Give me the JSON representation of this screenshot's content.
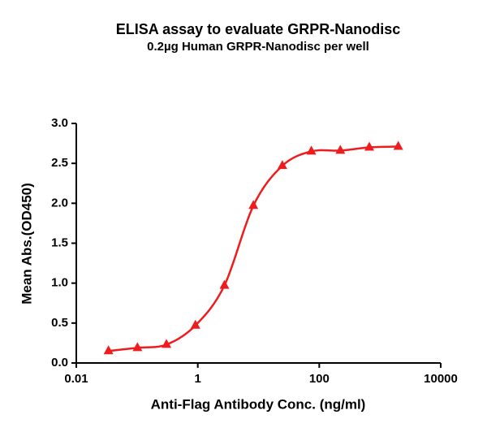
{
  "chart_data": {
    "type": "scatter",
    "title": "ELISA assay to evaluate GRPR-Nanodisc",
    "subtitle": "0.2µg Human GRPR-Nanodisc per well",
    "x_label": "Anti-Flag Antibody Conc. (ng/ml)",
    "y_label": "Mean Abs.(OD450)",
    "x_log": true,
    "xlim": [
      0.01,
      10000
    ],
    "xticks": [
      0.01,
      1,
      100,
      10000
    ],
    "ylim": [
      0,
      3
    ],
    "yticks": [
      {
        "value": 0,
        "label": "0.0"
      },
      0.5,
      {
        "value": 1,
        "label": "1.0"
      },
      1.5,
      {
        "value": 2,
        "label": "2.0"
      },
      2.5,
      {
        "value": 3,
        "label": "3.0"
      }
    ],
    "series": [
      {
        "color": "#ee1c1c",
        "x": [
          0.0339,
          0.1016,
          0.3048,
          0.9145,
          2.743,
          8.23,
          24.69,
          74.07,
          222.2,
          666.7,
          2000
        ],
        "values": [
          0.15,
          0.19,
          0.23,
          0.47,
          0.97,
          1.97,
          2.47,
          2.65,
          2.66,
          2.7,
          2.71
        ]
      }
    ]
  }
}
